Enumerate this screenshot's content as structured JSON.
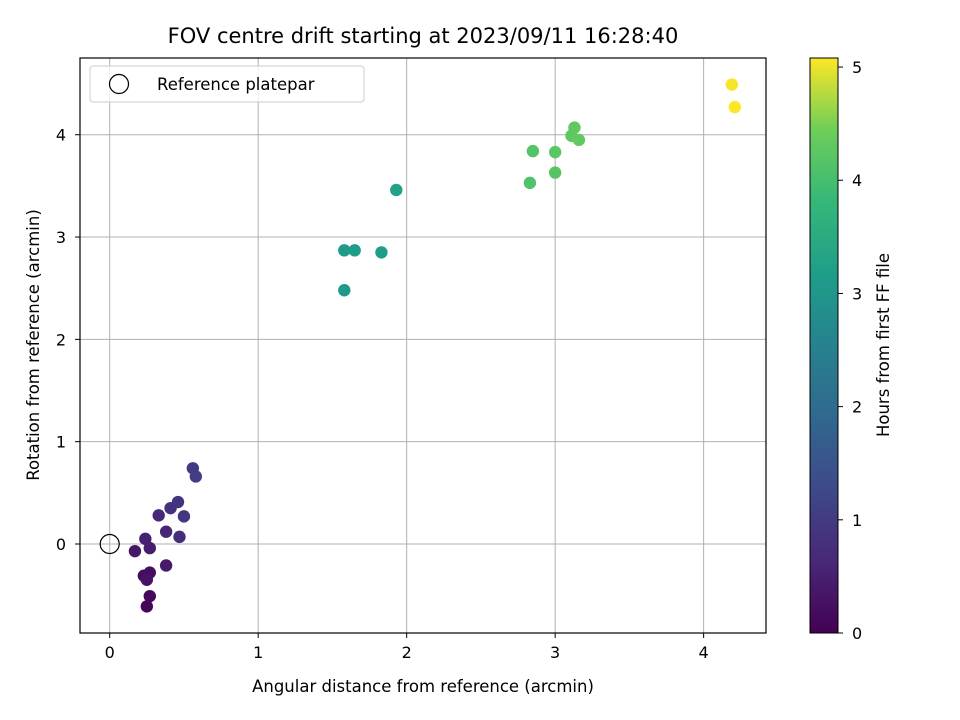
{
  "chart_data": {
    "type": "scatter",
    "title": "FOV centre drift starting at 2023/09/11 16:28:40",
    "xlabel": "Angular distance from reference (arcmin)",
    "ylabel": "Rotation from reference (arcmin)",
    "xlim": [
      -0.2,
      4.42
    ],
    "ylim": [
      -0.87,
      4.75
    ],
    "xticks": [
      0,
      1,
      2,
      3,
      4
    ],
    "yticks": [
      0,
      1,
      2,
      3,
      4
    ],
    "grid": true,
    "legend": {
      "placement": "upper-left",
      "entries": [
        "Reference platepar"
      ]
    },
    "reference_point": {
      "x": 0,
      "y": 0,
      "label": "Reference platepar"
    },
    "colorbar": {
      "label": "Hours from first FF file",
      "range": [
        0,
        5.08
      ],
      "ticks": [
        0,
        1,
        2,
        3,
        4,
        5
      ],
      "colormap": "viridis"
    },
    "points": [
      {
        "x": 0.25,
        "y": -0.61,
        "hours": 0.08
      },
      {
        "x": 0.27,
        "y": -0.51,
        "hours": 0.12
      },
      {
        "x": 0.23,
        "y": -0.31,
        "hours": 0.18
      },
      {
        "x": 0.27,
        "y": -0.28,
        "hours": 0.22
      },
      {
        "x": 0.25,
        "y": -0.35,
        "hours": 0.28
      },
      {
        "x": 0.17,
        "y": -0.07,
        "hours": 0.34
      },
      {
        "x": 0.38,
        "y": -0.21,
        "hours": 0.4
      },
      {
        "x": 0.27,
        "y": -0.04,
        "hours": 0.46
      },
      {
        "x": 0.24,
        "y": 0.05,
        "hours": 0.52
      },
      {
        "x": 0.38,
        "y": 0.12,
        "hours": 0.6
      },
      {
        "x": 0.33,
        "y": 0.28,
        "hours": 0.66
      },
      {
        "x": 0.47,
        "y": 0.07,
        "hours": 0.74
      },
      {
        "x": 0.41,
        "y": 0.35,
        "hours": 0.8
      },
      {
        "x": 0.46,
        "y": 0.41,
        "hours": 0.86
      },
      {
        "x": 0.5,
        "y": 0.27,
        "hours": 0.92
      },
      {
        "x": 0.56,
        "y": 0.74,
        "hours": 1.0
      },
      {
        "x": 0.58,
        "y": 0.66,
        "hours": 1.05
      },
      {
        "x": 1.58,
        "y": 2.48,
        "hours": 3.05
      },
      {
        "x": 1.58,
        "y": 2.87,
        "hours": 3.1
      },
      {
        "x": 1.65,
        "y": 2.87,
        "hours": 3.15
      },
      {
        "x": 1.83,
        "y": 2.85,
        "hours": 3.2
      },
      {
        "x": 1.93,
        "y": 3.46,
        "hours": 3.25
      },
      {
        "x": 2.83,
        "y": 3.53,
        "hours": 4.1
      },
      {
        "x": 2.85,
        "y": 3.84,
        "hours": 4.15
      },
      {
        "x": 3.0,
        "y": 3.63,
        "hours": 4.2
      },
      {
        "x": 3.0,
        "y": 3.83,
        "hours": 4.22
      },
      {
        "x": 3.11,
        "y": 3.99,
        "hours": 4.26
      },
      {
        "x": 3.13,
        "y": 4.07,
        "hours": 4.28
      },
      {
        "x": 3.16,
        "y": 3.95,
        "hours": 4.3
      },
      {
        "x": 4.19,
        "y": 4.49,
        "hours": 5.05
      },
      {
        "x": 4.21,
        "y": 4.27,
        "hours": 5.08
      }
    ]
  }
}
